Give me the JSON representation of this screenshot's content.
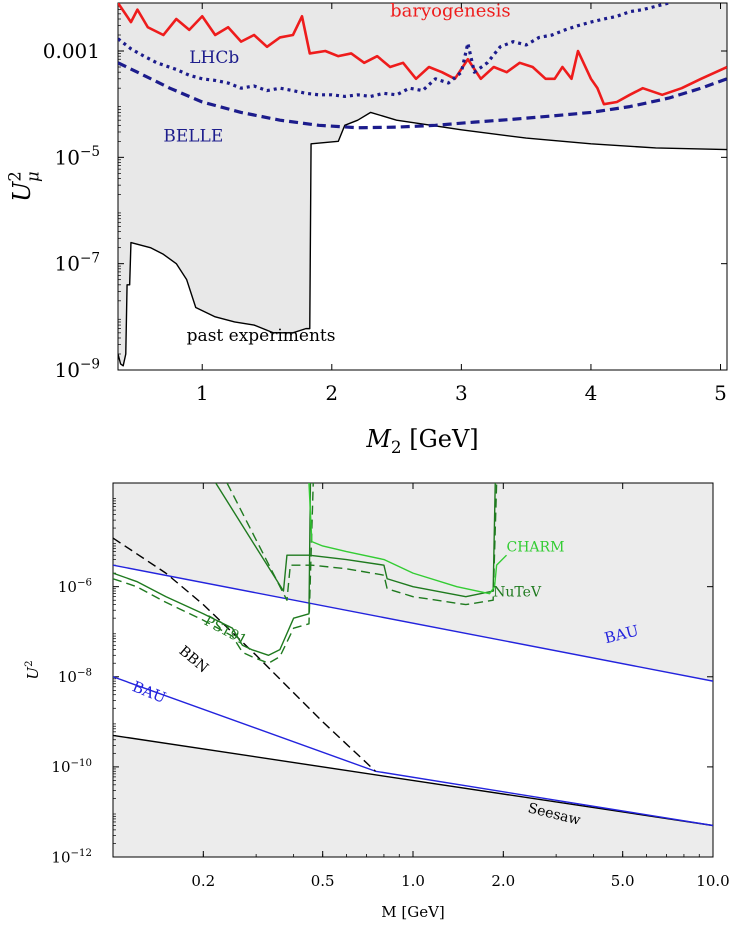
{
  "chart_data": [
    {
      "type": "line",
      "panel": "top",
      "x_scale": "linear",
      "y_scale": "log",
      "xlim": [
        0.35,
        5.05
      ],
      "ylim": [
        1e-09,
        0.008
      ],
      "xlabel": "M",
      "xlabel_sub": "2",
      "xlabel_unit": "[GeV]",
      "ylabel": "U",
      "ylabel_sub": "μ",
      "ylabel_sup": "2",
      "x_ticks": [
        1,
        2,
        3,
        4,
        5
      ],
      "x_tick_labels": [
        "1",
        "2",
        "3",
        "4",
        "5"
      ],
      "y_ticks": [
        1e-09,
        1e-07,
        1e-05,
        0.001
      ],
      "y_tick_labels": [
        {
          "base": "10",
          "exp": "−9"
        },
        {
          "base": "10",
          "exp": "−7"
        },
        {
          "base": "10",
          "exp": "−5"
        },
        {
          "base": "0.001",
          "exp": ""
        }
      ],
      "shaded_color": "#e8e8e8",
      "series": [
        {
          "name": "past experiments",
          "style": "solid",
          "color": "#000000",
          "fill_above": true,
          "x": [
            0.35,
            0.37,
            0.39,
            0.41,
            0.42,
            0.44,
            0.45,
            0.6,
            0.7,
            0.8,
            0.88,
            0.95,
            1.1,
            1.25,
            1.4,
            1.55,
            1.7,
            1.8,
            1.83,
            1.84,
            2.05,
            2.1,
            2.2,
            2.3,
            2.5,
            3.0,
            3.5,
            4.0,
            4.5,
            5.05
          ],
          "y": [
            2e-09,
            1.3e-09,
            1.2e-09,
            2e-09,
            4e-08,
            4e-08,
            2.5e-07,
            2e-07,
            1.5e-07,
            1e-07,
            5e-08,
            1.5e-08,
            1e-08,
            8e-09,
            7e-09,
            5e-09,
            5e-09,
            6e-09,
            6e-09,
            1.8e-05,
            2e-05,
            4e-05,
            5e-05,
            7e-05,
            5e-05,
            3.3e-05,
            2.3e-05,
            1.8e-05,
            1.5e-05,
            1.4e-05
          ]
        },
        {
          "name": "baryogenesis",
          "style": "solid",
          "color": "#ee1c1c",
          "x": [
            0.35,
            0.45,
            0.5,
            0.58,
            0.7,
            0.8,
            0.9,
            1.0,
            1.1,
            1.2,
            1.3,
            1.4,
            1.5,
            1.6,
            1.7,
            1.77,
            1.83,
            1.95,
            2.05,
            2.15,
            2.25,
            2.35,
            2.45,
            2.55,
            2.65,
            2.75,
            2.85,
            2.95,
            3.05,
            3.15,
            3.25,
            3.35,
            3.45,
            3.55,
            3.65,
            3.72,
            3.78,
            3.85,
            3.9,
            4.0,
            4.05,
            4.1,
            4.2,
            4.3,
            4.4,
            4.55,
            4.7,
            4.85,
            5.05
          ],
          "y": [
            0.008,
            0.0035,
            0.006,
            0.0028,
            0.002,
            0.004,
            0.0025,
            0.0045,
            0.002,
            0.0028,
            0.0015,
            0.002,
            0.0012,
            0.0018,
            0.002,
            0.0045,
            0.0009,
            0.001,
            0.0008,
            0.0009,
            0.0006,
            0.0008,
            0.0005,
            0.0006,
            0.0003,
            0.0005,
            0.0004,
            0.0003,
            0.0007,
            0.0003,
            0.0005,
            0.0004,
            0.0006,
            0.0005,
            0.0003,
            0.0003,
            0.0005,
            0.0003,
            0.001,
            0.0003,
            0.0002,
            0.0001,
            0.00011,
            0.00015,
            0.0002,
            0.00015,
            0.0002,
            0.0003,
            0.0005
          ]
        },
        {
          "name": "LHCb",
          "style": "dotted",
          "color": "#1c1c8c",
          "x": [
            0.35,
            0.45,
            0.55,
            0.65,
            0.8,
            0.9,
            1.0,
            1.1,
            1.2,
            1.3,
            1.4,
            1.5,
            1.6,
            1.7,
            1.8,
            1.9,
            2.0,
            2.1,
            2.2,
            2.3,
            2.4,
            2.5,
            2.6,
            2.7,
            2.8,
            2.9,
            3.0,
            3.05,
            3.1,
            3.2,
            3.3,
            3.4,
            3.5,
            3.6,
            3.7,
            3.8,
            3.9,
            4.0,
            4.1,
            4.2,
            4.3,
            4.4,
            4.6
          ],
          "y": [
            0.0017,
            0.0011,
            0.0008,
            0.0006,
            0.00045,
            0.00035,
            0.0003,
            0.00028,
            0.00025,
            0.0002,
            0.00022,
            0.00018,
            0.0002,
            0.00018,
            0.00016,
            0.00015,
            0.00015,
            0.00014,
            0.00015,
            0.00014,
            0.00016,
            0.00015,
            0.0002,
            0.00018,
            0.0003,
            0.00025,
            0.0004,
            0.0014,
            0.0004,
            0.0006,
            0.0012,
            0.0015,
            0.0013,
            0.0018,
            0.002,
            0.0025,
            0.003,
            0.0035,
            0.004,
            0.0045,
            0.0055,
            0.006,
            0.008
          ]
        },
        {
          "name": "BELLE",
          "style": "dashed",
          "color": "#1c1c8c",
          "x": [
            0.35,
            0.5,
            0.75,
            1.0,
            1.3,
            1.6,
            1.9,
            2.2,
            2.5,
            2.8,
            3.1,
            3.4,
            3.7,
            4.0,
            4.3,
            4.6,
            4.85,
            5.05
          ],
          "y": [
            0.0006,
            0.0004,
            0.0002,
            0.00011,
            7e-05,
            5e-05,
            4e-05,
            3.6e-05,
            3.7e-05,
            4e-05,
            4.6e-05,
            5.2e-05,
            6e-05,
            7e-05,
            9e-05,
            0.00013,
            0.0002,
            0.0003
          ]
        }
      ],
      "annotations": [
        {
          "text": "baryogenesis",
          "x": 2.45,
          "y": 0.0045,
          "color": "#ee1c1c",
          "size": 18
        },
        {
          "text": "LHCb",
          "x": 0.9,
          "y": 0.0006,
          "color": "#1c1c8c",
          "size": 17
        },
        {
          "text": "BELLE",
          "x": 0.7,
          "y": 2e-05,
          "color": "#1c1c8c",
          "size": 17
        },
        {
          "text": "past experiments",
          "x": 0.88,
          "y": 3.5e-09,
          "color": "#000000",
          "size": 17
        }
      ]
    },
    {
      "type": "line",
      "panel": "bottom",
      "x_scale": "log",
      "y_scale": "log",
      "xlim": [
        0.1,
        10
      ],
      "ylim": [
        1e-12,
        0.0002
      ],
      "xlabel": "M [GeV]",
      "ylabel": "U",
      "ylabel_sup": "2",
      "x_ticks": [
        0.2,
        0.5,
        1,
        2,
        5,
        10
      ],
      "x_tick_labels": [
        "0.2",
        "0.5",
        "1.0",
        "2.0",
        "5.0",
        "10.0"
      ],
      "y_ticks": [
        1e-12,
        1e-10,
        1e-08,
        1e-06
      ],
      "y_tick_labels": [
        {
          "base": "10",
          "exp": "−12"
        },
        {
          "base": "10",
          "exp": "−10"
        },
        {
          "base": "10",
          "exp": "−8"
        },
        {
          "base": "10",
          "exp": "−6"
        }
      ],
      "shaded_color": "#ececec",
      "series": [
        {
          "name": "Seesaw",
          "style": "solid",
          "color": "#000000",
          "fill_below": true,
          "x": [
            0.1,
            10
          ],
          "y": [
            5e-10,
            5e-12
          ]
        },
        {
          "name": "BAU",
          "style": "solid",
          "color": "#2323dd",
          "fill_above": true,
          "x": [
            0.1,
            10
          ],
          "y": [
            3e-06,
            8e-09
          ]
        },
        {
          "name": "BAU",
          "style": "solid",
          "color": "#2323dd",
          "x": [
            0.1,
            0.75,
            10
          ],
          "y": [
            1e-08,
            8e-11,
            5e-12
          ]
        },
        {
          "name": "BBN",
          "style": "dashed",
          "color": "#000000",
          "x": [
            0.1,
            0.15,
            0.2,
            0.3,
            0.5,
            0.75
          ],
          "y": [
            1.2e-05,
            2e-06,
            4e-07,
            3e-08,
            1e-09,
            8e-11
          ]
        },
        {
          "name": "PS191",
          "style": "solid",
          "color": "#1f7a1f",
          "x": [
            0.1,
            0.12,
            0.15,
            0.2,
            0.25,
            0.27,
            0.29,
            0.33,
            0.36,
            0.4,
            0.45,
            0.455
          ],
          "y": [
            2e-06,
            1.3e-06,
            6e-07,
            2.5e-07,
            1.2e-07,
            5e-08,
            4e-08,
            3e-08,
            4e-08,
            2e-07,
            2.5e-07,
            0.0002
          ]
        },
        {
          "name": "PS191",
          "style": "dashed",
          "color": "#1f7a1f",
          "x": [
            0.1,
            0.12,
            0.15,
            0.2,
            0.25,
            0.27,
            0.29,
            0.33,
            0.36,
            0.4,
            0.45,
            0.465
          ],
          "y": [
            1.5e-06,
            1e-06,
            4.5e-07,
            1.8e-07,
            8e-08,
            3.5e-08,
            2.8e-08,
            2e-08,
            2.8e-08,
            1.2e-07,
            1.5e-07,
            0.0002
          ]
        },
        {
          "name": "NuTeV",
          "style": "solid",
          "color": "#1f7a1f",
          "x": [
            0.22,
            0.37,
            0.38,
            0.45,
            0.6,
            0.8,
            0.82,
            1.0,
            1.5,
            1.85,
            1.88
          ],
          "y": [
            0.0002,
            8e-07,
            5e-06,
            5e-06,
            4e-06,
            3e-06,
            1.5e-06,
            1e-06,
            6e-07,
            8e-07,
            0.0002
          ]
        },
        {
          "name": "NuTeV",
          "style": "dashed",
          "color": "#1f7a1f",
          "x": [
            0.24,
            0.38,
            0.39,
            0.46,
            0.6,
            0.8,
            0.82,
            1.0,
            1.5,
            1.85,
            1.9
          ],
          "y": [
            0.0002,
            5e-07,
            3e-06,
            3e-06,
            2.5e-06,
            1.8e-06,
            9e-07,
            6e-07,
            4e-07,
            5e-07,
            0.0002
          ]
        },
        {
          "name": "CHARM",
          "style": "solid",
          "color": "#33cc33",
          "x": [
            0.45,
            0.46,
            0.5,
            0.6,
            0.8,
            1.0,
            1.4,
            1.8,
            1.87,
            1.9,
            2.05
          ],
          "y": [
            0.0002,
            1e-05,
            8e-06,
            6e-06,
            4e-06,
            2e-06,
            1e-06,
            7e-07,
            1e-06,
            3e-06,
            5e-06
          ]
        }
      ],
      "annotations": [
        {
          "text": "CHARM",
          "x": 2.05,
          "y": 6e-06,
          "color": "#33cc33",
          "size": 14,
          "rotate": 0
        },
        {
          "text": "NuTeV",
          "x": 1.85,
          "y": 6e-07,
          "color": "#1f7a1f",
          "size": 14,
          "rotate": 0
        },
        {
          "text": "PS191",
          "x": 0.2,
          "y": 1.5e-07,
          "color": "#1f7a1f",
          "size": 14,
          "rotate": 28
        },
        {
          "text": "BBN",
          "x": 0.165,
          "y": 3.5e-08,
          "color": "#000000",
          "size": 14,
          "rotate": 40
        },
        {
          "text": "BAU",
          "x": 4.4,
          "y": 5.5e-08,
          "color": "#2323dd",
          "size": 15,
          "rotate": -14
        },
        {
          "text": "BAU",
          "x": 0.115,
          "y": 5e-09,
          "color": "#2323dd",
          "size": 15,
          "rotate": 22
        },
        {
          "text": "Seesaw",
          "x": 2.4,
          "y": 1e-11,
          "color": "#000000",
          "size": 14,
          "rotate": 14
        }
      ]
    }
  ]
}
